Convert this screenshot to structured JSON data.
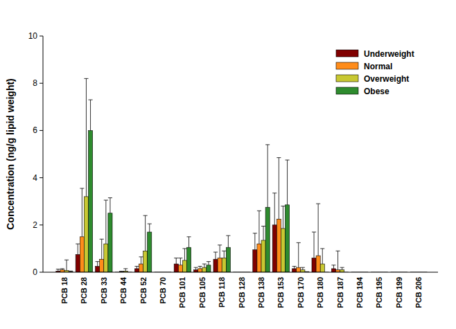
{
  "chart_data": {
    "type": "bar",
    "y_label": "Concentration (ng/g lipid weight)",
    "categories": [
      "PCB 18",
      "PCB 28",
      "PCB 33",
      "PCB 44",
      "PCB 52",
      "PCB 70",
      "PCB 101",
      "PCB 105",
      "PCB 118",
      "PCB 128",
      "PCB 138",
      "PCB 153",
      "PCB 170",
      "PCB 180",
      "PCB 187",
      "PCB 194",
      "PCB 195",
      "PCB 199",
      "PCB 206"
    ],
    "series": [
      {
        "name": "Underweight",
        "color": "#800000",
        "values": [
          0.05,
          0.75,
          0.25,
          0,
          0.15,
          0,
          0.35,
          0.1,
          0.55,
          0,
          0.95,
          2.0,
          0.15,
          0.6,
          0.15,
          0,
          0,
          0,
          0
        ],
        "errors": [
          0.08,
          0.45,
          0.2,
          0,
          0.1,
          0,
          0.25,
          0.1,
          0.3,
          0,
          0.7,
          1.35,
          0.1,
          1.1,
          0.15,
          0,
          0,
          0,
          0
        ]
      },
      {
        "name": "Normal",
        "color": "#ff8c1a",
        "values": [
          0.1,
          1.5,
          0.55,
          0.02,
          0.35,
          0,
          0.3,
          0.15,
          0.6,
          0,
          1.2,
          2.25,
          0.2,
          0.7,
          0.1,
          0,
          0,
          0,
          0
        ],
        "errors": [
          0.05,
          2.05,
          0.85,
          0.02,
          0.3,
          0,
          0.3,
          0.1,
          0.55,
          0,
          1.4,
          2.6,
          1.05,
          2.2,
          0.8,
          0,
          0,
          0,
          0
        ]
      },
      {
        "name": "Overweight",
        "color": "#c8c832",
        "values": [
          0.07,
          3.2,
          1.2,
          0.05,
          0.9,
          0,
          0.5,
          0.2,
          0.6,
          0,
          1.35,
          1.85,
          0.1,
          0.35,
          0.1,
          0,
          0,
          0,
          0
        ],
        "errors": [
          0.45,
          5.0,
          1.85,
          0.1,
          1.5,
          0,
          0.5,
          0.15,
          0.3,
          0,
          0.6,
          0.95,
          0.1,
          0.65,
          0.1,
          0,
          0,
          0,
          0
        ]
      },
      {
        "name": "Obese",
        "color": "#2e8b2e",
        "values": [
          0.02,
          6.0,
          2.5,
          0,
          1.7,
          0,
          1.05,
          0.3,
          1.05,
          0,
          2.75,
          2.85,
          0.02,
          0,
          0,
          0,
          0,
          0,
          0
        ],
        "errors": [
          0.03,
          1.3,
          0.65,
          0,
          0.35,
          0,
          0.45,
          0.15,
          0.5,
          0,
          2.65,
          1.9,
          0,
          0,
          0,
          0,
          0,
          0,
          0
        ]
      }
    ],
    "ylim": [
      0,
      10
    ],
    "yticks": [
      0,
      2,
      4,
      6,
      8,
      10
    ],
    "grid": false,
    "legend": "upper right"
  }
}
